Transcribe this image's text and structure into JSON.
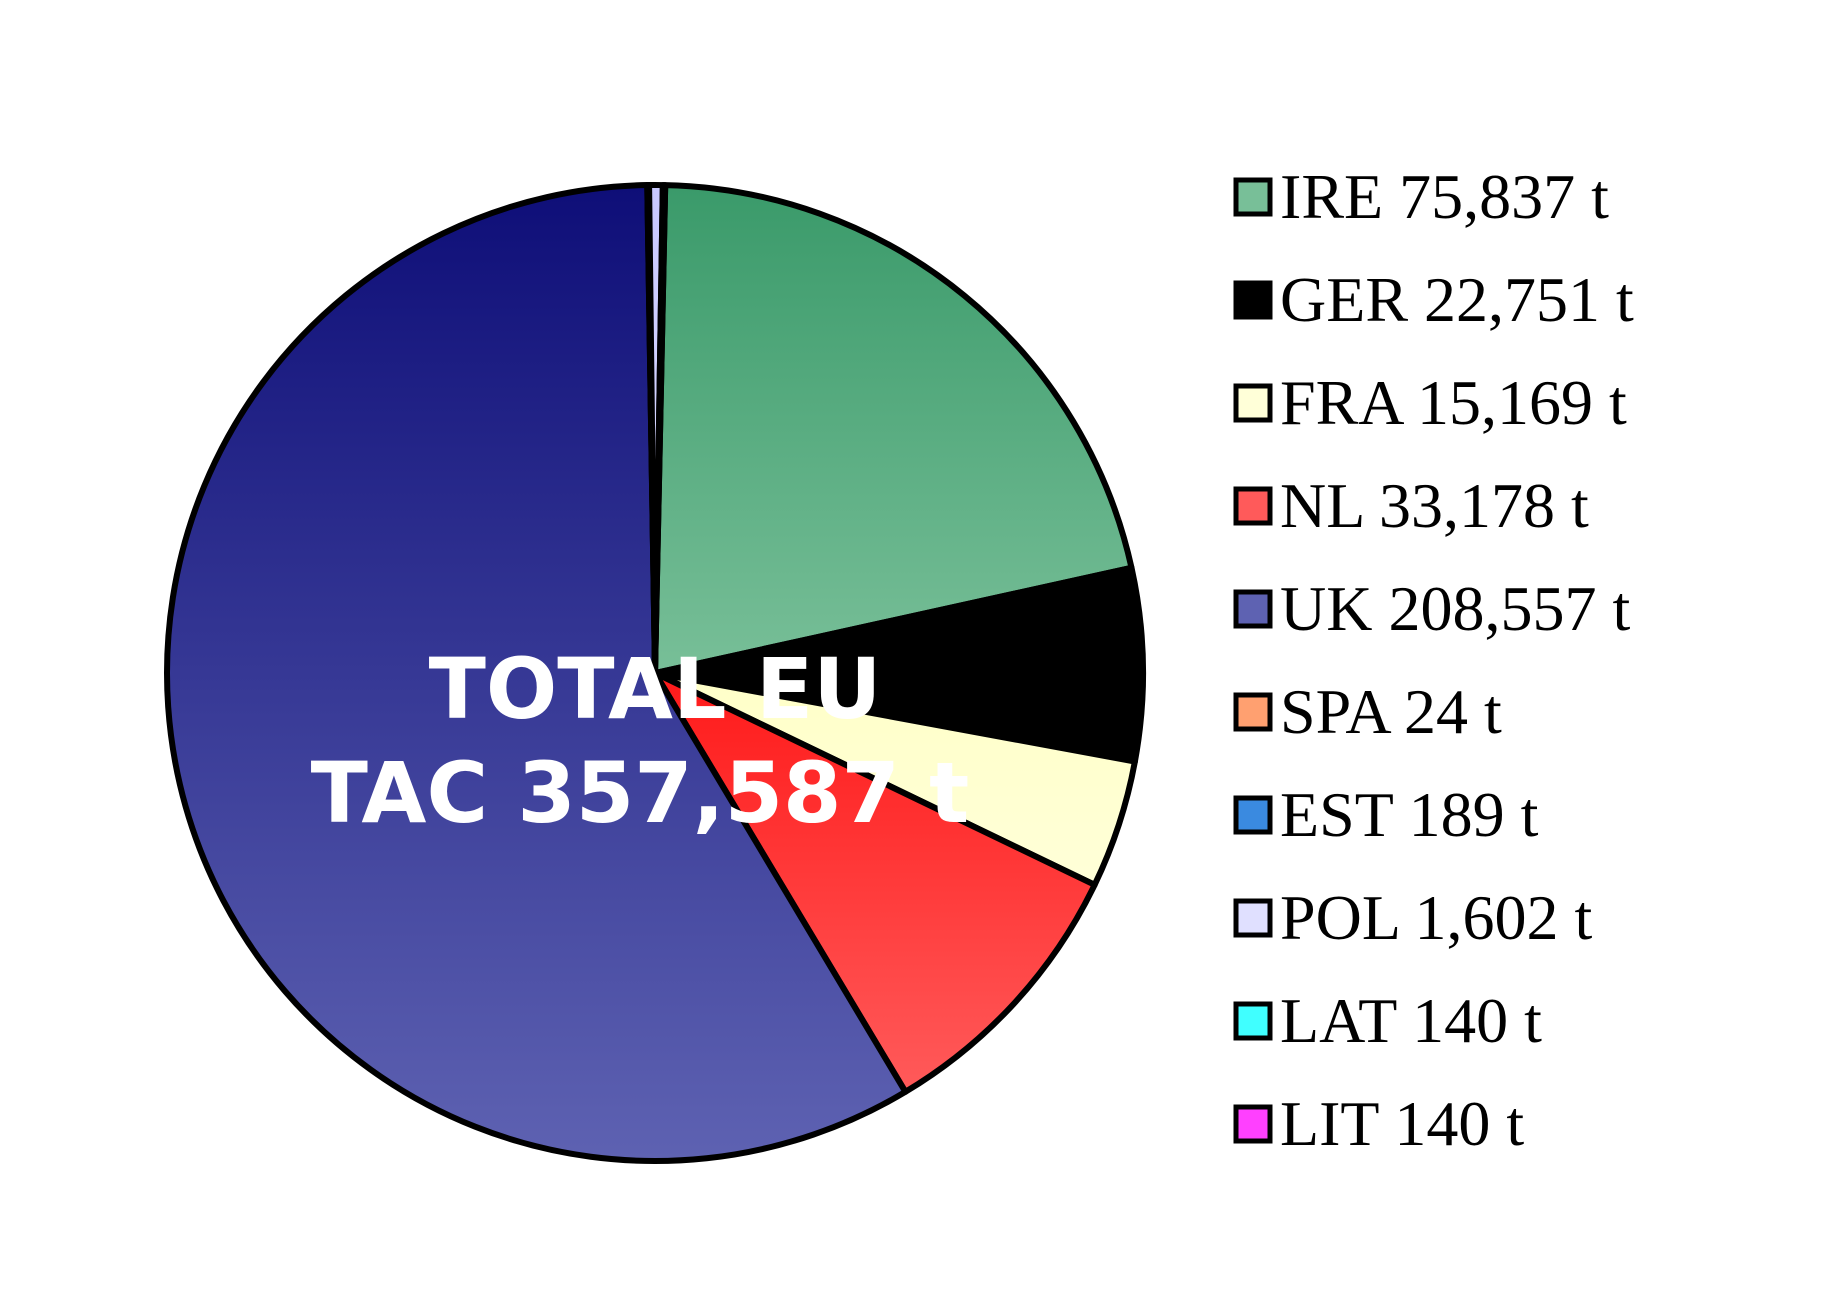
{
  "chart_data": {
    "type": "pie",
    "title": "",
    "annotation_lines": [
      "TOTAL EU",
      "TAC 357,587 t"
    ],
    "legend_position": "right",
    "slices": [
      {
        "label": "IRE 75,837 t",
        "value": 75837,
        "color": "#3a9a6a",
        "color_light": "#78bf98"
      },
      {
        "label": "GER 22,751 t",
        "value": 22751,
        "color": "#000000",
        "color_light": "#000000"
      },
      {
        "label": "FRA 15,169 t",
        "value": 15169,
        "color": "#ffffc8",
        "color_light": "#ffffd8"
      },
      {
        "label": "NL 33,178 t",
        "value": 33178,
        "color": "#ff1a1a",
        "color_light": "#ff5a5a"
      },
      {
        "label": "UK 208,557 t",
        "value": 208557,
        "color": "#0e0e78",
        "color_light": "#5e62b2"
      },
      {
        "label": "SPA 24 t",
        "value": 24,
        "color": "#ff7a3a",
        "color_light": "#ffa070"
      },
      {
        "label": "EST 189 t",
        "value": 189,
        "color": "#1a62c8",
        "color_light": "#3a8ae0"
      },
      {
        "label": "POL 1,602 t",
        "value": 1602,
        "color": "#c8c8ff",
        "color_light": "#e0e0ff"
      },
      {
        "label": "LAT 140 t",
        "value": 140,
        "color": "#00e8e8",
        "color_light": "#40ffff"
      },
      {
        "label": "LIT 140 t",
        "value": 140,
        "color": "#e800e8",
        "color_light": "#ff40ff"
      }
    ]
  }
}
